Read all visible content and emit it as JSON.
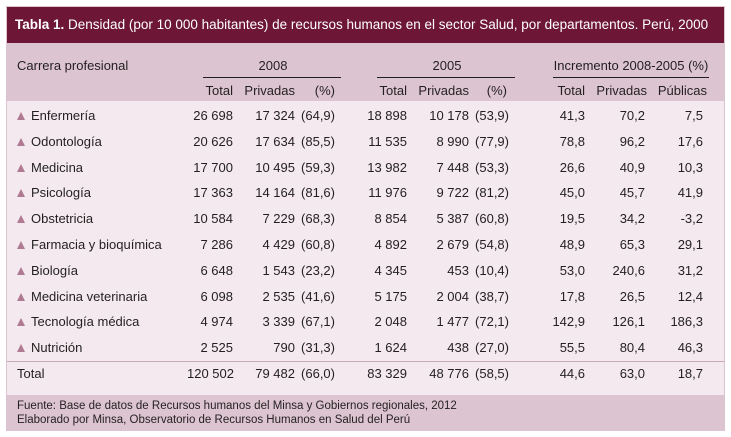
{
  "table": {
    "title_bold": "Tabla 1.",
    "title_rest": " Densidad (por 10 000 habitantes) de recursos humanos en el sector Salud, por departamentos. Perú, 2000",
    "header": {
      "first_col": "Carrera profesional",
      "group_2008": "2008",
      "group_2005": "2005",
      "group_inc": "Incremento 2008-2005 (%)",
      "sub_2008": [
        "Total",
        "Privadas",
        "(%)"
      ],
      "sub_2005": [
        "Total",
        "Privadas",
        "(%)"
      ],
      "sub_inc": [
        "Total",
        "Privadas",
        "Públicas"
      ]
    },
    "rows": [
      {
        "label": "Enfermería",
        "t08": "26 698",
        "p08": "17 324",
        "pc08": "(64,9)",
        "t05": "18 898",
        "p05": "10 178",
        "pc05": "(53,9)",
        "it": "41,3",
        "ip": "70,2",
        "ipub": "7,5"
      },
      {
        "label": "Odontología",
        "t08": "20 626",
        "p08": "17 634",
        "pc08": "(85,5)",
        "t05": "11 535",
        "p05": "8 990",
        "pc05": "(77,9)",
        "it": "78,8",
        "ip": "96,2",
        "ipub": "17,6"
      },
      {
        "label": "Medicina",
        "t08": "17 700",
        "p08": "10 495",
        "pc08": "(59,3)",
        "t05": "13 982",
        "p05": "7 448",
        "pc05": "(53,3)",
        "it": "26,6",
        "ip": "40,9",
        "ipub": "10,3"
      },
      {
        "label": "Psicología",
        "t08": "17 363",
        "p08": "14 164",
        "pc08": "(81,6)",
        "t05": "11 976",
        "p05": "9 722",
        "pc05": "(81,2)",
        "it": "45,0",
        "ip": "45,7",
        "ipub": "41,9"
      },
      {
        "label": "Obstetricia",
        "t08": "10 584",
        "p08": "7 229",
        "pc08": "(68,3)",
        "t05": "8 854",
        "p05": "5 387",
        "pc05": "(60,8)",
        "it": "19,5",
        "ip": "34,2",
        "ipub": "-3,2"
      },
      {
        "label": "Farmacia y bioquímica",
        "t08": "7 286",
        "p08": "4 429",
        "pc08": "(60,8)",
        "t05": "4 892",
        "p05": "2 679",
        "pc05": "(54,8)",
        "it": "48,9",
        "ip": "65,3",
        "ipub": "29,1"
      },
      {
        "label": "Biología",
        "t08": "6 648",
        "p08": "1 543",
        "pc08": "(23,2)",
        "t05": "4 345",
        "p05": "453",
        "pc05": "(10,4)",
        "it": "53,0",
        "ip": "240,6",
        "ipub": "31,2"
      },
      {
        "label": "Medicina veterinaria",
        "t08": "6 098",
        "p08": "2 535",
        "pc08": "(41,6)",
        "t05": "5 175",
        "p05": "2 004",
        "pc05": "(38,7)",
        "it": "17,8",
        "ip": "26,5",
        "ipub": "12,4"
      },
      {
        "label": "Tecnología médica",
        "t08": "4 974",
        "p08": "3 339",
        "pc08": "(67,1)",
        "t05": "2 048",
        "p05": "1 477",
        "pc05": "(72,1)",
        "it": "142,9",
        "ip": "126,1",
        "ipub": "186,3"
      },
      {
        "label": "Nutrición",
        "t08": "2 525",
        "p08": "790",
        "pc08": "(31,3)",
        "t05": "1 624",
        "p05": "438",
        "pc05": "(27,0)",
        "it": "55,5",
        "ip": "80,4",
        "ipub": "46,3"
      }
    ],
    "total": {
      "label": "Total",
      "t08": "120 502",
      "p08": "79 482",
      "pc08": "(66,0)",
      "t05": "83 329",
      "p05": "48 776",
      "pc05": "(58,5)",
      "it": "44,6",
      "ip": "63,0",
      "ipub": "18,7"
    },
    "footer": {
      "line1": "Fuente: Base de datos de Recursos humanos del Minsa y Gobiernos regionales, 2012",
      "line2": "Elaborado por Minsa, Observatorio de Recursos Humanos en Salud del Perú"
    },
    "colors": {
      "title_bg": "#6d1636",
      "header_bg": "#dcc4d0",
      "body_bg": "#f3e9ee",
      "marker": "#b07a92"
    }
  }
}
